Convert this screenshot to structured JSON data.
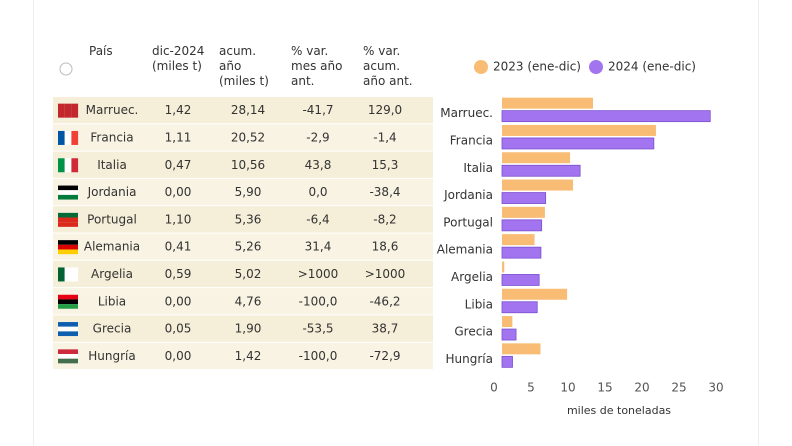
{
  "table": {
    "columns": [
      "País",
      "dic-2024 (miles t)",
      "acum. año (miles t)",
      "% var. mes año ant.",
      "% var. acum. año ant."
    ],
    "rows": [
      [
        "Marruec.",
        "1,42",
        "28,14",
        "-41,7",
        "129,0"
      ],
      [
        "Francia",
        "1,11",
        "20,52",
        "-2,9",
        "-1,4"
      ],
      [
        "Italia",
        "0,47",
        "10,56",
        "43,8",
        "15,3"
      ],
      [
        "Jordania",
        "0,00",
        "5,90",
        "0,0",
        "-38,4"
      ],
      [
        "Portugal",
        "1,10",
        "5,36",
        "-6,4",
        "-8,2"
      ],
      [
        "Alemania",
        "0,41",
        "5,26",
        "31,4",
        "18,6"
      ],
      [
        "Argelia",
        "0,59",
        "5,02",
        ">1000",
        ">1000"
      ],
      [
        "Libia",
        "0,00",
        "4,76",
        "-100,0",
        "-46,2"
      ],
      [
        "Grecia",
        "0,05",
        "1,90",
        "-53,5",
        "38,7"
      ],
      [
        "Hungría",
        "0,00",
        "1,42",
        "-100,0",
        "-72,9"
      ]
    ]
  },
  "chart_data": {
    "type": "hbar",
    "categories": [
      "Marruec.",
      "Francia",
      "Italia",
      "Jordania",
      "Portugal",
      "Alemania",
      "Argelia",
      "Libia",
      "Grecia",
      "Hungría"
    ],
    "series": [
      {
        "name": "2023 (ene-dic)",
        "color": "#f9bc74",
        "values": [
          12.3,
          20.8,
          9.2,
          9.6,
          5.8,
          4.4,
          0.3,
          8.8,
          1.4,
          5.2
        ]
      },
      {
        "name": "2024 (ene-dic)",
        "color": "#a374f0",
        "values": [
          28.14,
          20.52,
          10.56,
          5.9,
          5.36,
          5.26,
          5.02,
          4.76,
          1.9,
          1.42
        ]
      }
    ],
    "xlim": [
      0,
      30
    ],
    "xticks": [
      0,
      5,
      10,
      15,
      20,
      25,
      30
    ],
    "x_label": "miles de toneladas",
    "legend": "top"
  }
}
